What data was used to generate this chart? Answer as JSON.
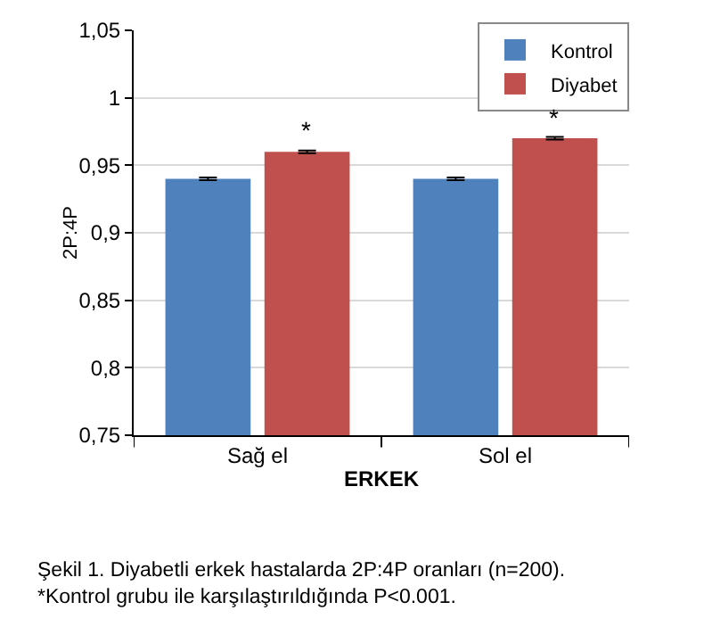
{
  "chart_data": {
    "type": "bar",
    "xlabel": "ERKEK",
    "ylabel": "2P:4P",
    "categories": [
      "Sağ el",
      "Sol el"
    ],
    "series": [
      {
        "name": "Kontrol",
        "color": "#4f81bd",
        "values": [
          0.94,
          0.94
        ],
        "errors": [
          0.001,
          0.001
        ]
      },
      {
        "name": "Diyabet",
        "color": "#c0504d",
        "values": [
          0.96,
          0.97
        ],
        "errors": [
          0.001,
          0.001
        ]
      }
    ],
    "ylim": [
      0.75,
      1.05
    ],
    "yticks": [
      {
        "value": 0.75,
        "label": "0,75"
      },
      {
        "value": 0.8,
        "label": "0,8"
      },
      {
        "value": 0.85,
        "label": "0,85"
      },
      {
        "value": 0.9,
        "label": "0,9"
      },
      {
        "value": 0.95,
        "label": "0,95"
      },
      1,
      {
        "value": 1.05,
        "label": "1,05"
      }
    ],
    "grid": "y",
    "legend": "top right",
    "annotations": [
      {
        "text": "*",
        "x": "Sağ el",
        "y": 0.96
      },
      {
        "text": "*",
        "x": "Sol el",
        "y": 0.97
      },
      "Şekil 1. Diyabetli erkek hastalarda 2P:4P oranları (n=200). *Kontrol grubu ile karşılaştırıldığında P<0.001."
    ]
  }
}
